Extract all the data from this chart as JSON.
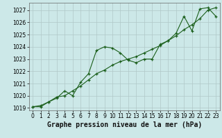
{
  "title": "Graphe pression niveau de la mer (hPa)",
  "bg_color": "#cce8e8",
  "grid_color": "#b0c8c8",
  "line_color": "#1a5e1a",
  "marker_color": "#1a5e1a",
  "xlim": [
    -0.5,
    23.5
  ],
  "ylim": [
    1018.8,
    1027.6
  ],
  "yticks": [
    1019,
    1020,
    1021,
    1022,
    1023,
    1024,
    1025,
    1026,
    1027
  ],
  "xticks": [
    0,
    1,
    2,
    3,
    4,
    5,
    6,
    7,
    8,
    9,
    10,
    11,
    12,
    13,
    14,
    15,
    16,
    17,
    18,
    19,
    20,
    21,
    22,
    23
  ],
  "series1_x": [
    0,
    1,
    2,
    3,
    4,
    5,
    6,
    7,
    8,
    9,
    10,
    11,
    12,
    13,
    14,
    15,
    16,
    17,
    18,
    19,
    20,
    21,
    22,
    23
  ],
  "series1_y": [
    1019.1,
    1019.1,
    1019.5,
    1019.8,
    1020.4,
    1020.0,
    1021.1,
    1021.8,
    1023.7,
    1024.0,
    1023.9,
    1023.5,
    1022.9,
    1022.7,
    1023.0,
    1023.0,
    1024.2,
    1024.5,
    1025.1,
    1026.5,
    1025.3,
    1027.1,
    1027.2,
    1026.5
  ],
  "series2_x": [
    0,
    1,
    2,
    3,
    4,
    5,
    6,
    7,
    8,
    9,
    10,
    11,
    12,
    13,
    14,
    15,
    16,
    17,
    18,
    19,
    20,
    21,
    22,
    23
  ],
  "series2_y": [
    1019.1,
    1019.2,
    1019.5,
    1019.9,
    1020.0,
    1020.4,
    1020.8,
    1021.3,
    1021.8,
    1022.1,
    1022.5,
    1022.8,
    1023.0,
    1023.2,
    1023.5,
    1023.8,
    1024.1,
    1024.5,
    1024.9,
    1025.4,
    1025.8,
    1026.3,
    1027.0,
    1027.2
  ],
  "title_fontsize": 7.0,
  "tick_fontsize": 5.5
}
